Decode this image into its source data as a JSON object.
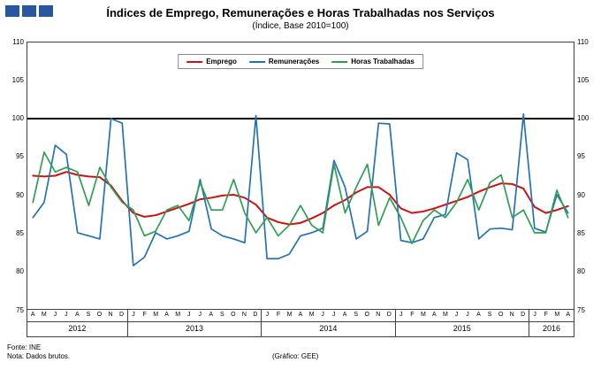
{
  "header": {
    "title": "Índices de Emprego, Remunerações e Horas Trabalhadas nos Serviços",
    "subtitle": "(Índice, Base 2010=100)"
  },
  "logo": {
    "color": "#26579f",
    "count": 3
  },
  "footer": {
    "source": "Fonte: INE",
    "note": "Nota: Dados brutos.",
    "credit": "(Gráfico: GEE)"
  },
  "chart_data": {
    "type": "line",
    "title": "Índices de Emprego, Remunerações e Horas Trabalhadas nos Serviços",
    "subtitle": "(Índice, Base 2010=100)",
    "ylim": [
      75,
      110
    ],
    "yticks": [
      75,
      80,
      85,
      90,
      95,
      100,
      105,
      110
    ],
    "reference_line": 100,
    "grid": false,
    "legend_position": "top-center",
    "months": [
      "A",
      "M",
      "J",
      "J",
      "A",
      "S",
      "O",
      "N",
      "D",
      "J",
      "F",
      "M",
      "A",
      "M",
      "J",
      "J",
      "A",
      "S",
      "O",
      "N",
      "D",
      "J",
      "F",
      "M",
      "A",
      "M",
      "J",
      "J",
      "A",
      "S",
      "O",
      "N",
      "D",
      "J",
      "F",
      "M",
      "A",
      "M",
      "J",
      "J",
      "A",
      "S",
      "O",
      "N",
      "D",
      "J",
      "F",
      "M",
      "A"
    ],
    "years": [
      {
        "label": "2012",
        "span": 9
      },
      {
        "label": "2013",
        "span": 12
      },
      {
        "label": "2014",
        "span": 12
      },
      {
        "label": "2015",
        "span": 12
      },
      {
        "label": "2016",
        "span": 4
      }
    ],
    "series": [
      {
        "name": "Emprego",
        "color": "#d01010",
        "width": 2,
        "values": [
          92.5,
          92.4,
          92.5,
          93.0,
          92.6,
          92.4,
          92.3,
          91.2,
          89.2,
          87.6,
          87.1,
          87.3,
          87.8,
          88.3,
          88.8,
          89.4,
          89.6,
          89.9,
          90.0,
          89.6,
          88.7,
          87.0,
          86.4,
          86.1,
          86.3,
          86.9,
          87.6,
          88.6,
          89.3,
          90.3,
          91.0,
          91.0,
          90.0,
          88.2,
          87.6,
          87.8,
          88.2,
          88.7,
          89.2,
          89.7,
          90.4,
          91.0,
          91.5,
          91.4,
          90.8,
          88.4,
          87.6,
          88.0,
          88.5
        ]
      },
      {
        "name": "Remunerações",
        "color": "#2272b5",
        "width": 1.7,
        "values": [
          87.0,
          89.0,
          96.5,
          95.3,
          85.0,
          84.6,
          84.2,
          100.0,
          99.4,
          80.7,
          81.8,
          85.0,
          84.2,
          84.6,
          85.2,
          92.0,
          85.5,
          84.6,
          84.2,
          83.7,
          100.4,
          81.6,
          81.6,
          82.2,
          84.6,
          85.0,
          85.6,
          94.5,
          91.0,
          84.2,
          85.2,
          99.4,
          99.3,
          84.0,
          83.7,
          84.2,
          87.0,
          87.4,
          95.5,
          94.6,
          84.2,
          85.5,
          85.6,
          85.4,
          100.6,
          85.6,
          85.1,
          90.0,
          87.6
        ]
      },
      {
        "name": "Horas Trabalhadas",
        "color": "#2e9e54",
        "width": 1.7,
        "values": [
          89.0,
          95.6,
          93.0,
          93.6,
          93.0,
          88.6,
          93.6,
          91.0,
          89.0,
          88.0,
          84.6,
          85.2,
          88.0,
          88.6,
          86.6,
          91.6,
          88.0,
          88.0,
          92.0,
          87.6,
          85.0,
          87.0,
          84.6,
          86.0,
          88.6,
          86.0,
          85.0,
          94.0,
          87.6,
          91.0,
          94.0,
          86.0,
          89.6,
          87.0,
          83.6,
          86.6,
          88.0,
          87.0,
          89.0,
          92.0,
          88.0,
          91.6,
          92.6,
          87.0,
          88.0,
          85.0,
          85.0,
          90.6,
          87.0
        ]
      }
    ]
  }
}
